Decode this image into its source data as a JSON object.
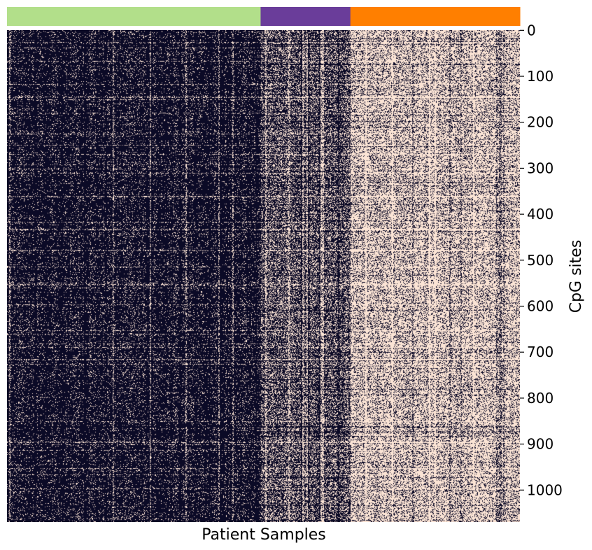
{
  "chart_data": {
    "type": "heatmap",
    "xlabel": "Patient Samples",
    "ylabel": "CpG sites",
    "y_axis_position": "right",
    "ylim": [
      0,
      1070
    ],
    "y_ticks": [
      0,
      100,
      200,
      300,
      400,
      500,
      600,
      700,
      800,
      900,
      1000
    ],
    "x_ticks": [],
    "n_rows": 1070,
    "n_columns": 360,
    "value_colors": {
      "low": "#0b0a26",
      "high": "#fbe4d5"
    },
    "column_groups": [
      {
        "color": "#b2df8a",
        "samples": 178,
        "high_fraction": 0.1
      },
      {
        "color": "#6a3d9a",
        "samples": 63,
        "high_fraction": 0.34
      },
      {
        "color": "#ff7f00",
        "samples": 119,
        "high_fraction": 0.72
      }
    ],
    "legend": "none",
    "grid": false
  }
}
